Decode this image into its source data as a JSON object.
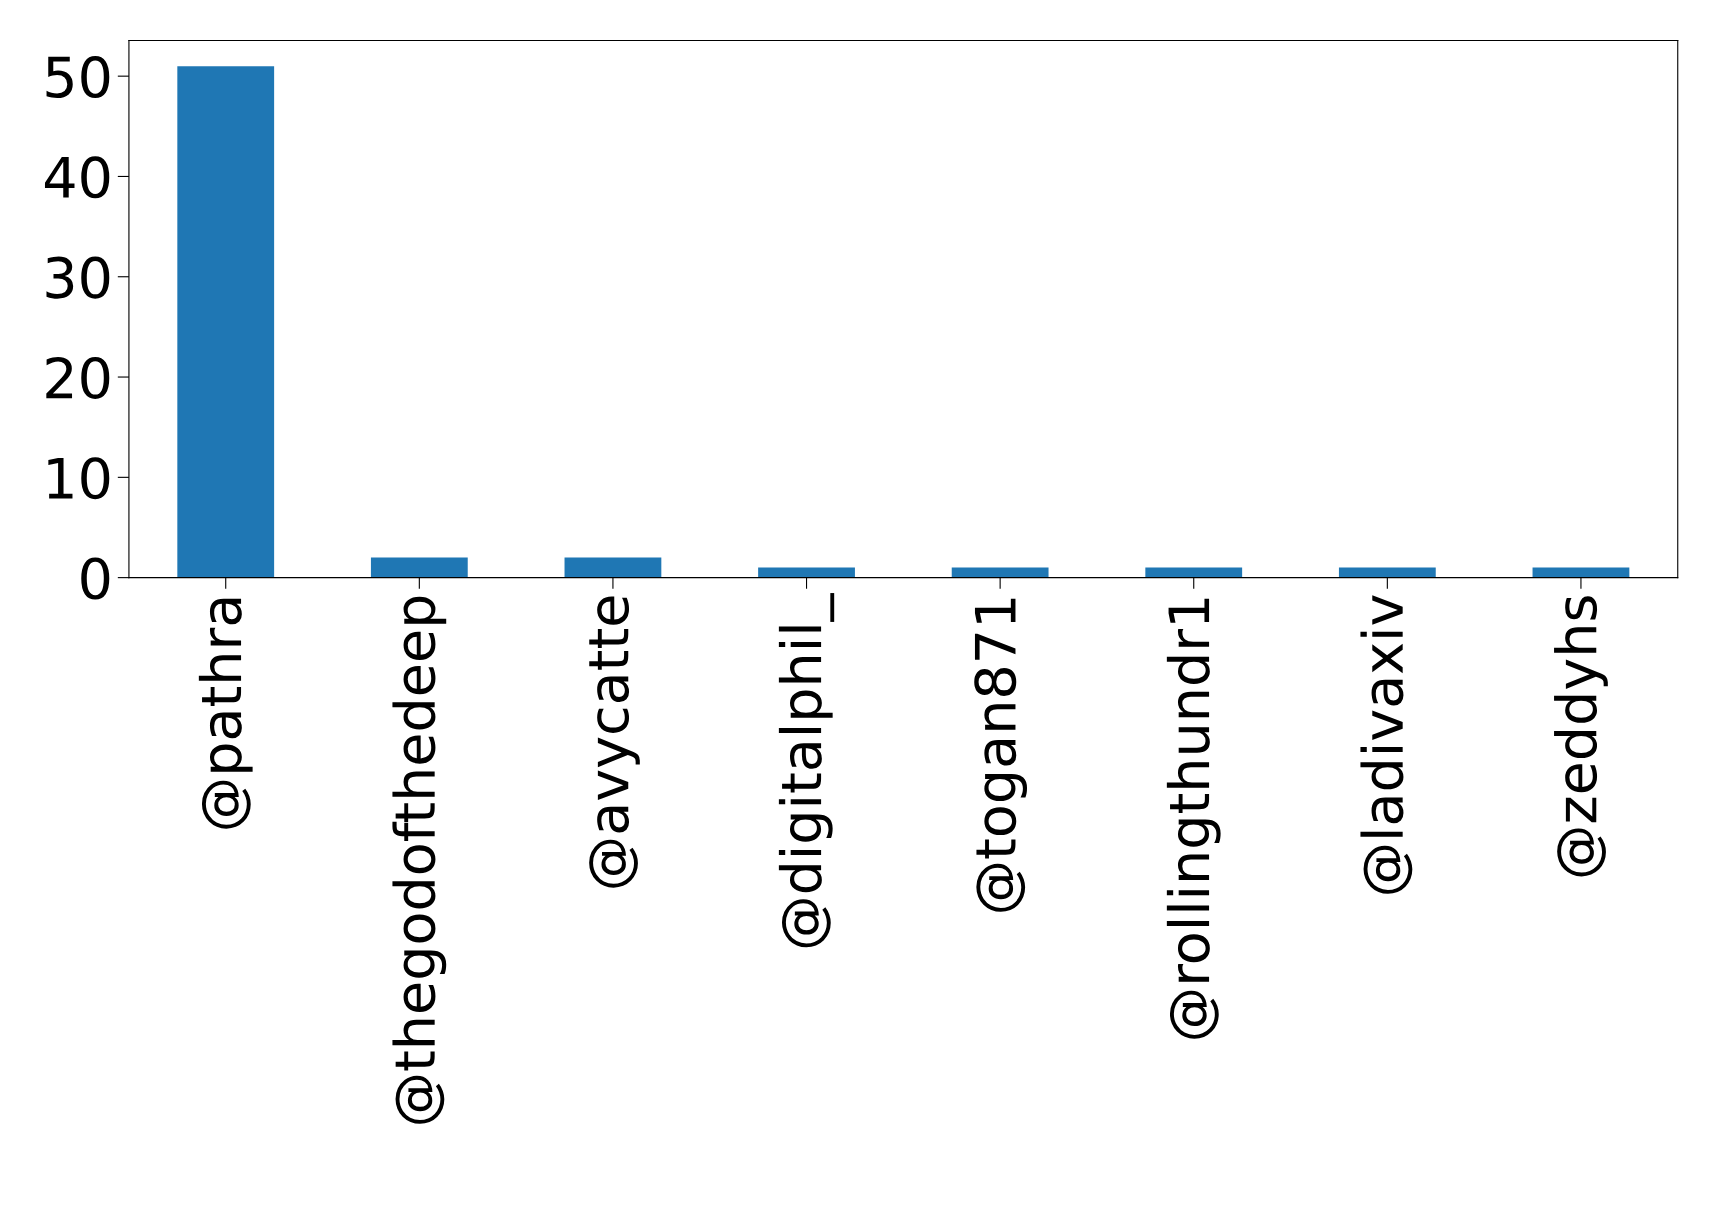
{
  "chart_data": {
    "type": "bar",
    "categories": [
      "@pathra",
      "@thegodofthedeep",
      "@avycatte",
      "@digitalphil_",
      "@togan871",
      "@rollingthundr1",
      "@ladivaxiv",
      "@zeddyhs"
    ],
    "values": [
      51,
      2,
      2,
      1,
      1,
      1,
      1,
      1
    ],
    "color": "#1f77b4",
    "ylim": [
      0,
      53.55
    ],
    "yticks": [
      0,
      10,
      20,
      30,
      40,
      50
    ],
    "grid": false,
    "legend": false
  }
}
